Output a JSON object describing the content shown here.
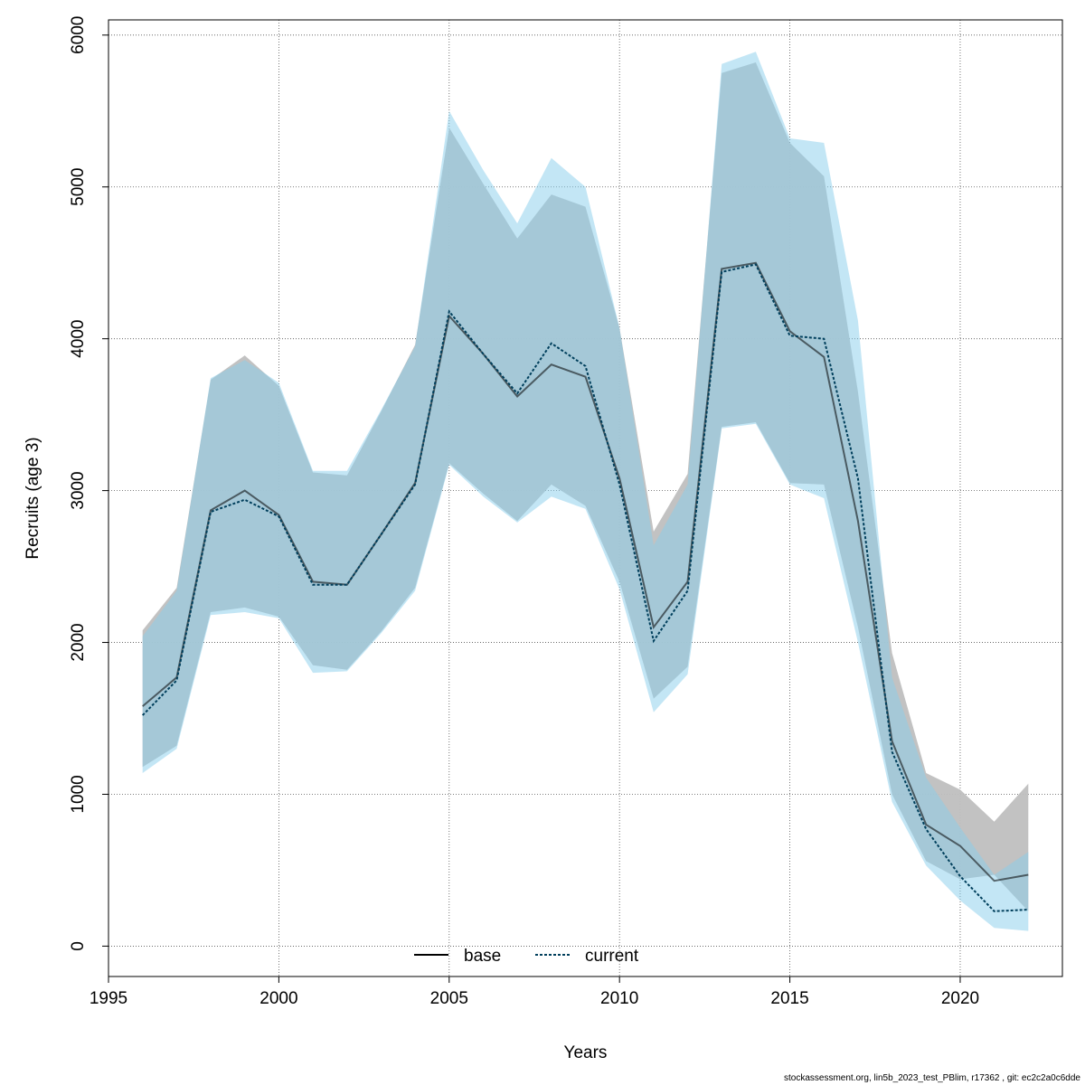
{
  "chart_data": {
    "type": "line",
    "xlabel": "Years",
    "ylabel": "Recruits (age 3)",
    "xlim": [
      1995,
      2023
    ],
    "ylim": [
      -200,
      6100
    ],
    "x_ticks": [
      1995,
      2000,
      2005,
      2010,
      2015,
      2020
    ],
    "y_ticks": [
      0,
      1000,
      2000,
      3000,
      4000,
      5000,
      6000
    ],
    "grid": true,
    "legend_position": "bottom-center",
    "x": [
      1996,
      1997,
      1998,
      1999,
      2000,
      2001,
      2002,
      2003,
      2004,
      2005,
      2006,
      2007,
      2008,
      2009,
      2010,
      2011,
      2012,
      2013,
      2014,
      2015,
      2016,
      2017,
      2018,
      2019,
      2020,
      2021,
      2022
    ],
    "series": [
      {
        "name": "base",
        "color": "#000000",
        "line_style": "solid",
        "band_color": "#bfbfbf",
        "values": [
          1580,
          1770,
          2870,
          3000,
          2840,
          2400,
          2380,
          2710,
          3050,
          4150,
          3900,
          3620,
          3830,
          3750,
          3080,
          2100,
          2400,
          4460,
          4500,
          4050,
          3880,
          2800,
          1350,
          800,
          660,
          430,
          470
        ],
        "lower": [
          1180,
          1320,
          2200,
          2230,
          2170,
          1850,
          1820,
          2070,
          2360,
          3180,
          2980,
          2800,
          3040,
          2900,
          2400,
          1630,
          1840,
          3420,
          3450,
          3050,
          3040,
          2100,
          1000,
          560,
          440,
          470,
          230
        ],
        "upper": [
          2080,
          2360,
          3730,
          3890,
          3690,
          3120,
          3100,
          3520,
          3960,
          5390,
          5020,
          4660,
          4950,
          4870,
          4070,
          2730,
          3110,
          5750,
          5820,
          5290,
          5070,
          3650,
          1930,
          1140,
          1030,
          820,
          1070
        ]
      },
      {
        "name": "current",
        "color": "#003f5c",
        "line_style": "dotted",
        "band_color": "#87ceeb",
        "values": [
          1520,
          1750,
          2860,
          2940,
          2830,
          2380,
          2380,
          2710,
          3040,
          4180,
          3900,
          3640,
          3970,
          3820,
          3040,
          2010,
          2340,
          4440,
          4490,
          4020,
          4000,
          3080,
          1280,
          770,
          460,
          230,
          240
        ],
        "lower": [
          1140,
          1300,
          2180,
          2200,
          2160,
          1800,
          1810,
          2060,
          2340,
          3170,
          2960,
          2790,
          2960,
          2880,
          2350,
          1540,
          1790,
          3410,
          3440,
          3040,
          2950,
          2000,
          950,
          530,
          300,
          120,
          100
        ],
        "upper": [
          2040,
          2340,
          3740,
          3860,
          3710,
          3130,
          3130,
          3530,
          3950,
          5500,
          5110,
          4760,
          5190,
          5000,
          4070,
          2640,
          3040,
          5810,
          5890,
          5320,
          5290,
          4120,
          1770,
          1110,
          780,
          470,
          620
        ]
      }
    ]
  },
  "footer": "stockassessment.org, lin5b_2023_test_PBlim, r17362 , git: ec2c2a0c6dde"
}
